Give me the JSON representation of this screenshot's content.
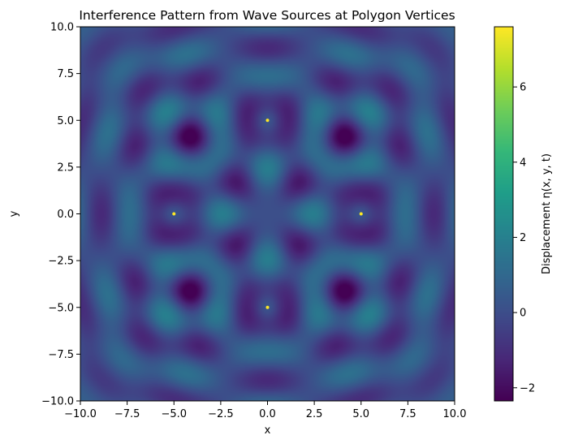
{
  "chart_data": {
    "type": "heatmap",
    "title": "Interference Pattern from Wave Sources at Polygon Vertices",
    "xlabel": "x",
    "ylabel": "y",
    "xlim": [
      -10,
      10
    ],
    "ylim": [
      -10,
      10
    ],
    "x_ticks": [
      -10.0,
      -7.5,
      -5.0,
      -2.5,
      0.0,
      2.5,
      5.0,
      7.5,
      10.0
    ],
    "y_ticks": [
      -10.0,
      -7.5,
      -5.0,
      -2.5,
      0.0,
      2.5,
      5.0,
      7.5,
      10.0
    ],
    "x_tick_labels": [
      "−10.0",
      "−7.5",
      "−5.0",
      "−2.5",
      "0.0",
      "2.5",
      "5.0",
      "7.5",
      "10.0"
    ],
    "y_tick_labels": [
      "−10.0",
      "−7.5",
      "−5.0",
      "−2.5",
      "0.0",
      "2.5",
      "5.0",
      "7.5",
      "10.0"
    ],
    "sources": [
      {
        "x": 5,
        "y": 0
      },
      {
        "x": 0,
        "y": 5
      },
      {
        "x": -5,
        "y": 0
      },
      {
        "x": 0,
        "y": -5
      }
    ],
    "value_range": [
      -2.35,
      7.6
    ],
    "colormap": "viridis",
    "grid": false,
    "colorbar": {
      "label": "Displacement η(x, y, t)",
      "ticks": [
        -2,
        0,
        2,
        4,
        6
      ],
      "tick_labels": [
        "−2",
        "0",
        "2",
        "4",
        "6"
      ],
      "min": -2.35,
      "max": 7.6
    }
  }
}
